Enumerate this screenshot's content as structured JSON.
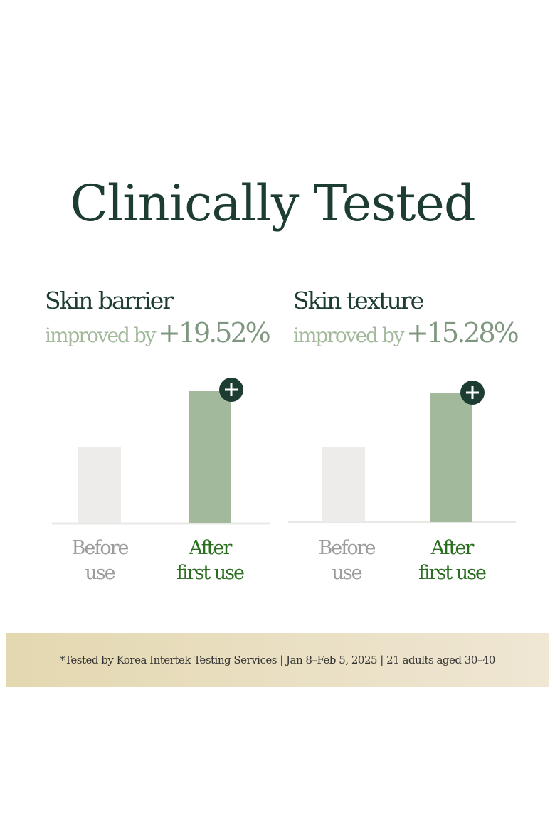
{
  "title": "Clinically Tested",
  "panels": [
    {
      "title": "Skin barrier",
      "subtitle": "improved by",
      "value": "+19.52%",
      "labels": [
        [
          "Before",
          "use"
        ],
        [
          "After",
          "first use"
        ]
      ]
    },
    {
      "title": "Skin texture",
      "subtitle": "improved by",
      "value": "+15.28%",
      "labels": [
        [
          "Before",
          "use"
        ],
        [
          "After",
          "first use"
        ]
      ]
    }
  ],
  "footnote": "*Tested by Korea Intertek Testing Services | Jan 8–Feb 5, 2025 | 21 adults aged 30–40"
}
